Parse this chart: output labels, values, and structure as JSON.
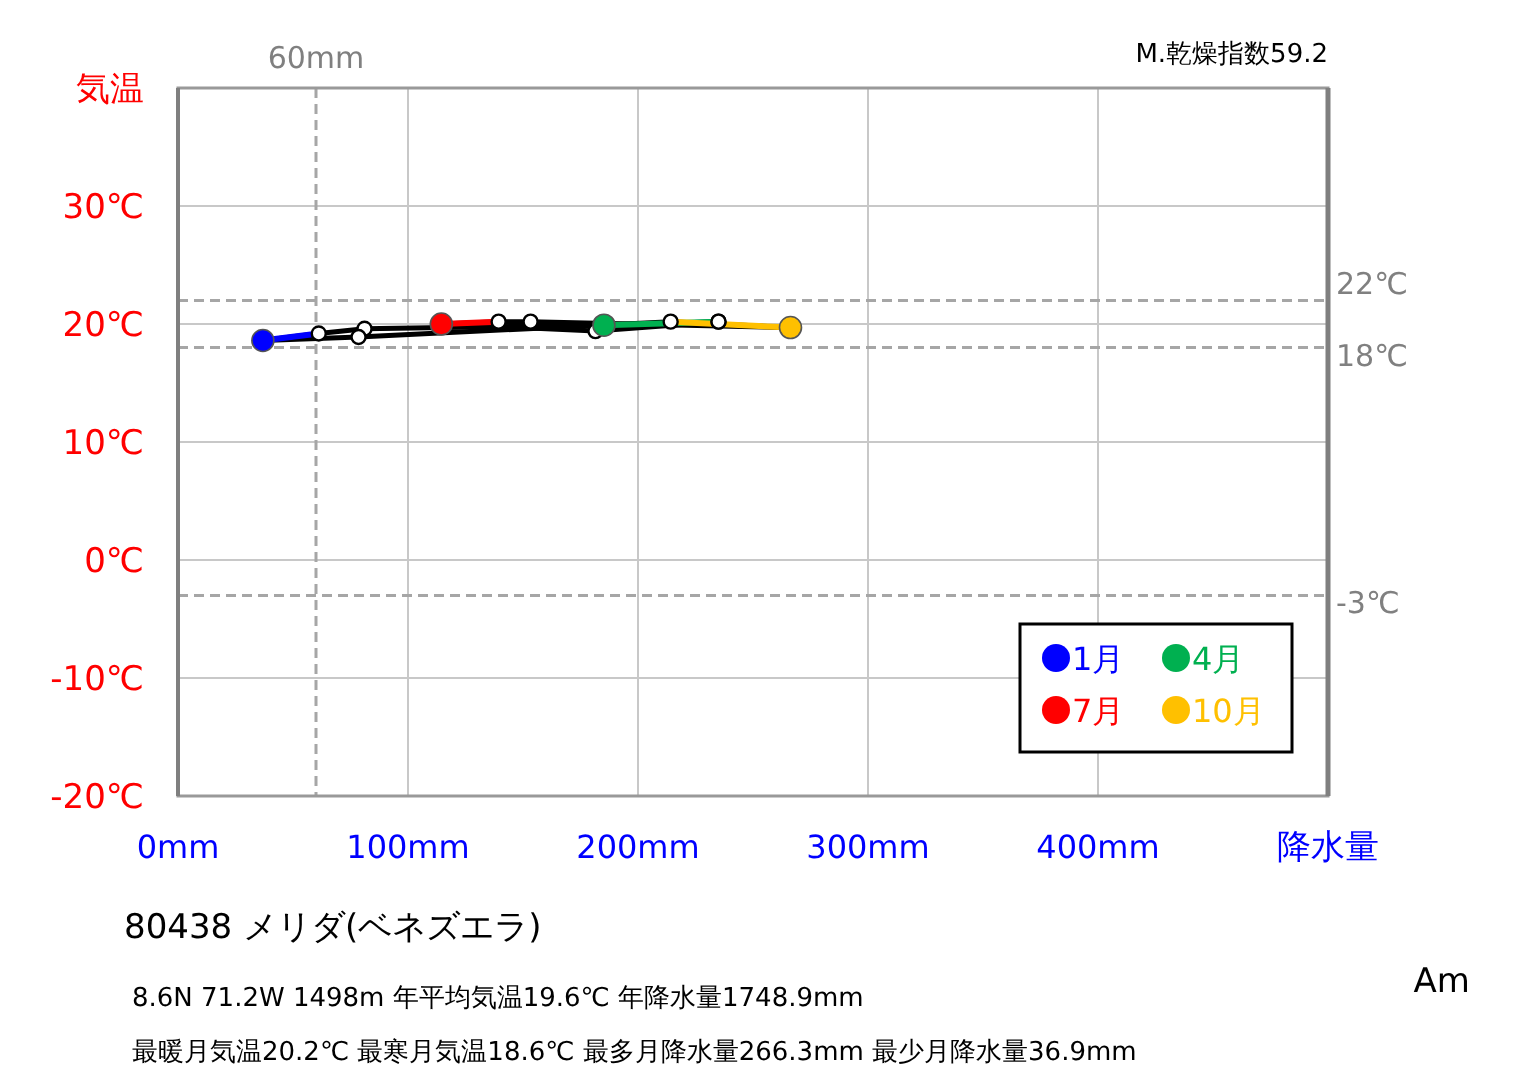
{
  "chart_data": {
    "type": "line",
    "title": "80438  メリダ(ベネズエラ)",
    "xlabel": "降水量",
    "ylabel": "気温",
    "xlim": [
      0,
      500
    ],
    "xticks": [
      {
        "value": 0,
        "label": "0mm"
      },
      {
        "value": 100,
        "label": "100mm"
      },
      {
        "value": 200,
        "label": "200mm"
      },
      {
        "value": 300,
        "label": "300mm"
      },
      {
        "value": 400,
        "label": "400mm"
      },
      {
        "value": 500,
        "label": null
      }
    ],
    "ylim": [
      -20,
      40
    ],
    "yticks": [
      {
        "value": -20,
        "label": "-20℃"
      },
      {
        "value": -10,
        "label": "-10℃"
      },
      {
        "value": 0,
        "label": "0℃"
      },
      {
        "value": 10,
        "label": "10℃"
      },
      {
        "value": 20,
        "label": "20℃"
      },
      {
        "value": 30,
        "label": "30℃"
      },
      {
        "value": 40,
        "label": null
      }
    ],
    "grid": true,
    "ref_lines": [
      {
        "axis": "x",
        "value": 60,
        "label": "60mm",
        "color": "#a6a6a6",
        "line_style": "dashed"
      },
      {
        "axis": "y",
        "value": 22,
        "label": "22℃",
        "color": "#a6a6a6",
        "line_style": "dashed"
      },
      {
        "axis": "y",
        "value": 18,
        "label": "18℃",
        "color": "#a6a6a6",
        "line_style": "dashed"
      },
      {
        "axis": "y",
        "value": -3,
        "label": "-3℃",
        "color": "#a6a6a6",
        "line_style": "dashed"
      }
    ],
    "series": [
      {
        "color": "#000000",
        "marker": "circle",
        "x": [
          36.9,
          61.2,
          81.1,
          185.2,
          235
        ],
        "values": [
          18.6,
          19.2,
          19.6,
          19.9,
          20.2
        ]
      },
      {
        "color": "#000000",
        "marker": "circle",
        "x": [
          235,
          181.5,
          114.5
        ],
        "values": [
          20.2,
          19.4,
          20.0
        ]
      },
      {
        "color": "#000000",
        "marker": "circle",
        "x": [
          114.5,
          139.4,
          153.3,
          266.3
        ],
        "values": [
          20.0,
          20.2,
          20.2,
          19.7
        ]
      },
      {
        "color": "#000000",
        "marker": "circle",
        "x": [
          266.3,
          214.2,
          78.5,
          36.9
        ],
        "values": [
          19.7,
          20.2,
          18.9,
          18.6
        ]
      },
      {
        "type": "line",
        "color": "#0000ff",
        "x": [
          36.9,
          61.2
        ],
        "values": [
          18.6,
          19.2
        ]
      },
      {
        "type": "line",
        "color": "#00b050",
        "x": [
          185.2,
          235
        ],
        "values": [
          19.9,
          20.2
        ]
      },
      {
        "type": "line",
        "color": "#ff0000",
        "x": [
          114.5,
          139.4
        ],
        "values": [
          20.0,
          20.2
        ]
      },
      {
        "type": "line",
        "color": "#ffc000",
        "x": [
          266.3,
          214.2
        ],
        "values": [
          19.7,
          20.2
        ]
      },
      {
        "type": "scatter",
        "name": "1月",
        "color": "#0000ff",
        "marker": "circle",
        "x": [
          36.9
        ],
        "values": [
          18.6
        ]
      },
      {
        "type": "scatter",
        "name": "4月",
        "color": "#00b050",
        "marker": "circle",
        "x": [
          185.2
        ],
        "values": [
          19.9
        ]
      },
      {
        "type": "scatter",
        "name": "7月",
        "color": "#ff0000",
        "marker": "circle",
        "x": [
          114.5
        ],
        "values": [
          20.0
        ]
      },
      {
        "type": "scatter",
        "name": "10月",
        "color": "#ffc000",
        "marker": "circle",
        "x": [
          266.3
        ],
        "values": [
          19.7
        ]
      }
    ],
    "legend": "bottom right",
    "annotations": [
      "M.乾燥指数59.2",
      "8.6N  71.2W 1498m  年平均気温19.6℃ 年降水量1748.9mm",
      "最暖月気温20.2℃ 最寒月気温18.6℃ 最多月降水量266.3mm 最少月降水量36.9mm",
      "Am"
    ]
  }
}
